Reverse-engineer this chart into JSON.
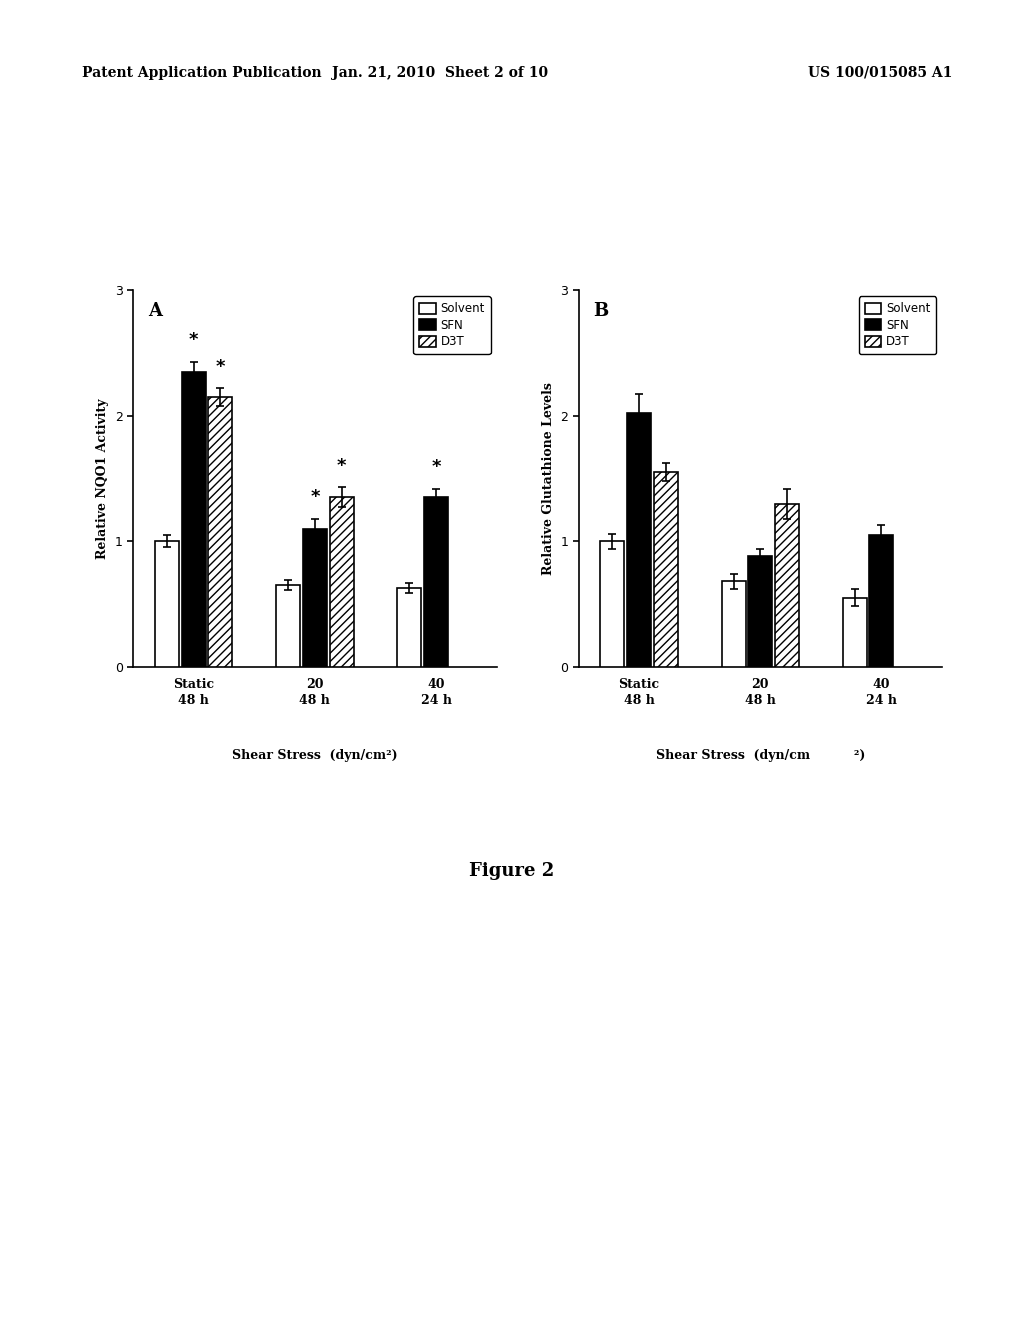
{
  "panel_A": {
    "title": "A",
    "ylabel": "Relative NQO1 Activity",
    "group_labels_line1": [
      "Static",
      "20",
      "40"
    ],
    "group_labels_line2": [
      "48 h",
      "48 h",
      "24 h"
    ],
    "solvent": [
      1.0,
      0.65,
      0.63
    ],
    "sfn": [
      2.35,
      1.1,
      1.35
    ],
    "d3t": [
      2.15,
      1.35,
      0.0
    ],
    "solvent_err": [
      0.05,
      0.04,
      0.04
    ],
    "sfn_err": [
      0.08,
      0.08,
      0.07
    ],
    "d3t_err": [
      0.07,
      0.08,
      0.0
    ],
    "stars_sfn": [
      true,
      true,
      false
    ],
    "stars_d3t": [
      true,
      true,
      true
    ],
    "ylim": [
      0,
      3.0
    ],
    "yticks": [
      0,
      1,
      2,
      3
    ]
  },
  "panel_B": {
    "title": "B",
    "ylabel": "Relative Glutathione Levels",
    "group_labels_line1": [
      "Static",
      "20",
      "40"
    ],
    "group_labels_line2": [
      "48 h",
      "48 h",
      "24 h"
    ],
    "solvent": [
      1.0,
      0.68,
      0.55
    ],
    "sfn": [
      2.02,
      0.88,
      1.05
    ],
    "d3t": [
      1.55,
      1.3,
      0.0
    ],
    "solvent_err": [
      0.06,
      0.06,
      0.07
    ],
    "sfn_err": [
      0.15,
      0.06,
      0.08
    ],
    "d3t_err": [
      0.07,
      0.12,
      0.0
    ],
    "stars_sfn": [
      false,
      false,
      false
    ],
    "stars_d3t": [
      false,
      false,
      false
    ],
    "ylim": [
      0,
      3.0
    ],
    "yticks": [
      0,
      1,
      2,
      3
    ]
  },
  "bar_width": 0.22,
  "header_left": "Patent Application Publication",
  "header_mid": "Jan. 21, 2010  Sheet 2 of 10",
  "header_right": "US 100/015085 A1",
  "figure_label": "Figure 2",
  "background_color": "white"
}
